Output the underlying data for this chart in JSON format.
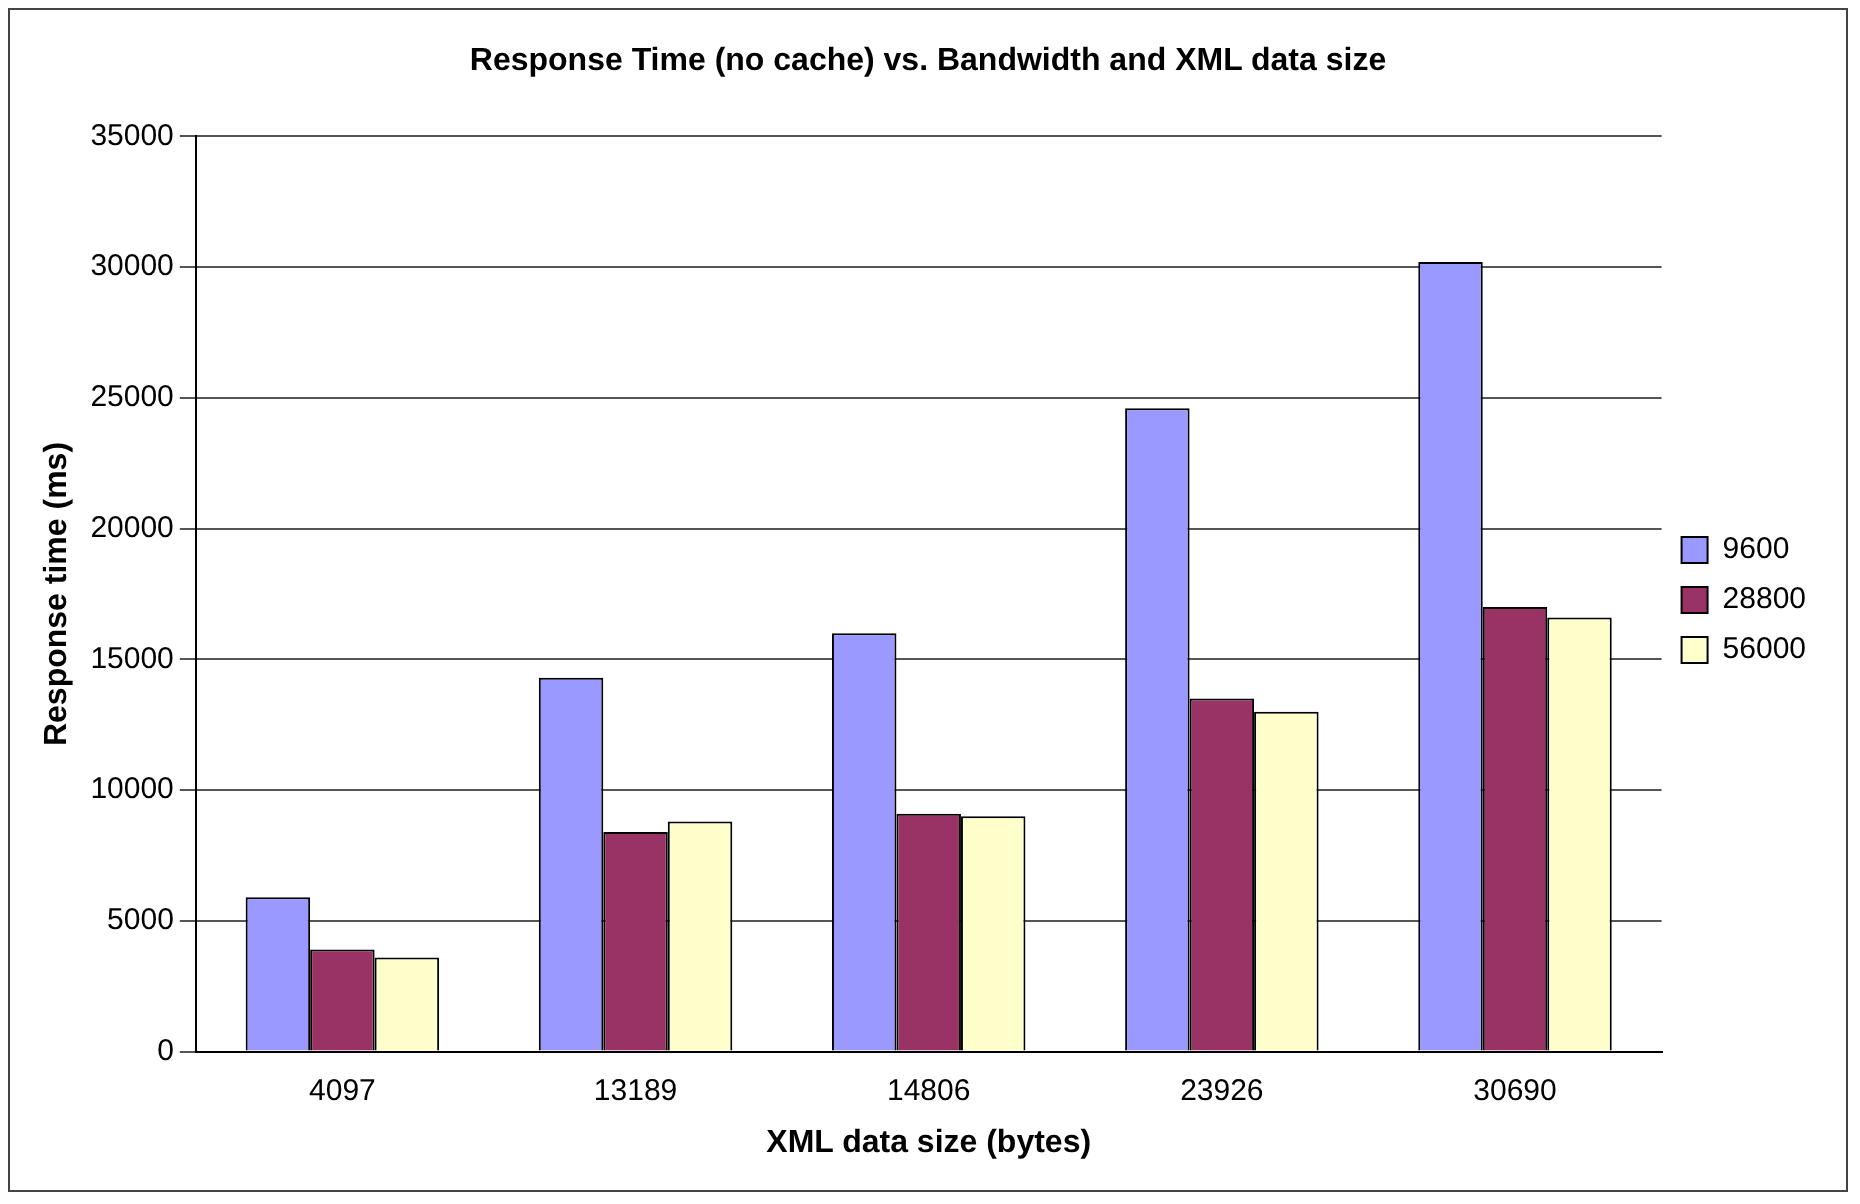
{
  "chart_data": {
    "type": "bar",
    "title": "Response Time (no cache) vs. Bandwidth and XML data size",
    "xlabel": "XML data size (bytes)",
    "ylabel": "Response time (ms)",
    "categories": [
      "4097",
      "13189",
      "14806",
      "23926",
      "30690"
    ],
    "series": [
      {
        "name": "9600",
        "color": "#9999ff",
        "values": [
          5900,
          14300,
          16000,
          24600,
          30200
        ]
      },
      {
        "name": "28800",
        "color": "#993366",
        "values": [
          3900,
          8400,
          9100,
          13500,
          17000
        ]
      },
      {
        "name": "56000",
        "color": "#ffffcc",
        "values": [
          3600,
          8800,
          9000,
          13000,
          16600
        ]
      }
    ],
    "ylim": [
      0,
      35000
    ],
    "yticks": [
      0,
      5000,
      10000,
      15000,
      20000,
      25000,
      30000,
      35000
    ],
    "grid": "y",
    "legend": "right"
  }
}
